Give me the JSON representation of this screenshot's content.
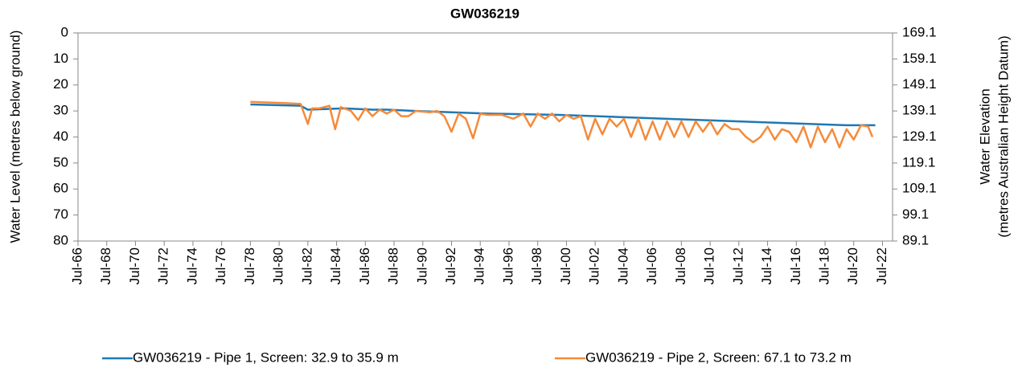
{
  "chart_data": {
    "type": "line",
    "title": "GW036219",
    "ylabel": "Water Level (metres below ground)",
    "y2label": [
      "Water Elevation",
      "(metres Australian Height Datum)"
    ],
    "xlim": [
      1966.5,
      2023.2
    ],
    "xticks": [
      {
        "value": 1966.5,
        "label": "Jul-66"
      },
      {
        "value": 1968.5,
        "label": "Jul-68"
      },
      {
        "value": 1970.5,
        "label": "Jul-70"
      },
      {
        "value": 1972.5,
        "label": "Jul-72"
      },
      {
        "value": 1974.5,
        "label": "Jul-74"
      },
      {
        "value": 1976.5,
        "label": "Jul-76"
      },
      {
        "value": 1978.5,
        "label": "Jul-78"
      },
      {
        "value": 1980.5,
        "label": "Jul-80"
      },
      {
        "value": 1982.5,
        "label": "Jul-82"
      },
      {
        "value": 1984.5,
        "label": "Jul-84"
      },
      {
        "value": 1986.5,
        "label": "Jul-86"
      },
      {
        "value": 1988.5,
        "label": "Jul-88"
      },
      {
        "value": 1990.5,
        "label": "Jul-90"
      },
      {
        "value": 1992.5,
        "label": "Jul-92"
      },
      {
        "value": 1994.5,
        "label": "Jul-94"
      },
      {
        "value": 1996.5,
        "label": "Jul-96"
      },
      {
        "value": 1998.5,
        "label": "Jul-98"
      },
      {
        "value": 2000.5,
        "label": "Jul-00"
      },
      {
        "value": 2002.5,
        "label": "Jul-02"
      },
      {
        "value": 2004.5,
        "label": "Jul-04"
      },
      {
        "value": 2006.5,
        "label": "Jul-06"
      },
      {
        "value": 2008.5,
        "label": "Jul-08"
      },
      {
        "value": 2010.5,
        "label": "Jul-10"
      },
      {
        "value": 2012.5,
        "label": "Jul-12"
      },
      {
        "value": 2014.5,
        "label": "Jul-14"
      },
      {
        "value": 2016.5,
        "label": "Jul-16"
      },
      {
        "value": 2018.5,
        "label": "Jul-18"
      },
      {
        "value": 2020.5,
        "label": "Jul-20"
      },
      {
        "value": 2022.5,
        "label": "Jul-22"
      }
    ],
    "ylim": [
      80,
      0
    ],
    "yticks": [
      0,
      10,
      20,
      30,
      40,
      50,
      60,
      70,
      80
    ],
    "y2lim": [
      89.1,
      169.1
    ],
    "y2ticks": [
      169.1,
      159.1,
      149.1,
      139.1,
      129.1,
      119.1,
      109.1,
      99.1,
      89.1
    ],
    "grid": false,
    "legend": "bottom",
    "series": [
      {
        "name": "GW036219 - Pipe 1, Screen: 32.9 to 35.9 m",
        "color": "#1f78b4",
        "x": [
          1978.5,
          1982,
          1982.5,
          1985,
          1987,
          1988,
          1990,
          1995,
          2000,
          2005,
          2010,
          2015,
          2020,
          2022
        ],
        "values": [
          27.5,
          28,
          29.5,
          29,
          29.5,
          29.5,
          30,
          31,
          31.5,
          32.5,
          33.5,
          34.5,
          35.5,
          35.5
        ]
      },
      {
        "name": "GW036219 - Pipe 2, Screen: 67.1 to 73.2 m",
        "color": "#f58a3a",
        "x": [
          1978.5,
          1980,
          1981,
          1982,
          1982.5,
          1982.8,
          1983.3,
          1984,
          1984.4,
          1984.8,
          1985.5,
          1986,
          1986.5,
          1987,
          1987.5,
          1988,
          1988.5,
          1989,
          1989.5,
          1990,
          1991,
          1991.5,
          1992,
          1992.5,
          1993,
          1993.5,
          1994,
          1994.5,
          1995,
          1996,
          1996.8,
          1997.5,
          1998,
          1998.5,
          1999,
          1999.5,
          2000,
          2000.5,
          2001,
          2001.5,
          2002,
          2002.5,
          2003,
          2003.5,
          2004,
          2004.5,
          2005,
          2005.5,
          2006,
          2006.5,
          2007,
          2007.5,
          2008,
          2008.5,
          2009,
          2009.5,
          2010,
          2010.5,
          2011,
          2011.5,
          2012,
          2012.5,
          2013,
          2013.5,
          2014,
          2014.5,
          2015,
          2015.5,
          2016,
          2016.5,
          2017,
          2017.5,
          2018,
          2018.5,
          2019,
          2019.5,
          2020,
          2020.5,
          2021,
          2021.5,
          2021.8
        ],
        "values": [
          26.5,
          26.8,
          27,
          27.3,
          35,
          29,
          29,
          28,
          37,
          28.5,
          30,
          33.5,
          29,
          32,
          29.5,
          31,
          29.5,
          32,
          32,
          30,
          30.5,
          30,
          32,
          38,
          31,
          33,
          40.5,
          31,
          31.5,
          31.5,
          33,
          31,
          36,
          31,
          33,
          31,
          34,
          31.5,
          33,
          32,
          41,
          33,
          39,
          33,
          36,
          33,
          40,
          33,
          41,
          34,
          41,
          34,
          40,
          34,
          40,
          34,
          38,
          34,
          39,
          35,
          37,
          37,
          40,
          42,
          40,
          36,
          41,
          37,
          38,
          42,
          36,
          44,
          36,
          42,
          37,
          44,
          37,
          41,
          35.5,
          36,
          40
        ]
      }
    ]
  }
}
